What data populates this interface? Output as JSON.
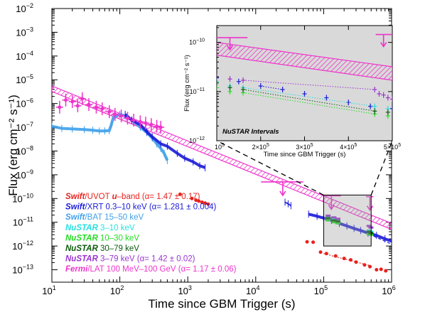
{
  "chart_data": [
    {
      "type": "scatter",
      "panel": "main",
      "xlabel": "Time since GBM Trigger (s)",
      "ylabel": "Flux (erg cm⁻² s⁻¹)",
      "xscale": "log",
      "yscale": "log",
      "xlim": [
        10,
        1000000
      ],
      "ylim": [
        3e-14,
        0.01
      ],
      "x_ticks": [
        {
          "v": 10,
          "base": "10",
          "exp": "1"
        },
        {
          "v": 100,
          "base": "10",
          "exp": "2"
        },
        {
          "v": 1000,
          "base": "10",
          "exp": "3"
        },
        {
          "v": 10000,
          "base": "10",
          "exp": "4"
        },
        {
          "v": 100000,
          "base": "10",
          "exp": "5"
        },
        {
          "v": 1000000,
          "base": "10",
          "exp": "6"
        }
      ],
      "y_ticks": [
        {
          "v": 1e-13,
          "base": "10",
          "exp": "−13"
        },
        {
          "v": 1e-12,
          "base": "10",
          "exp": "−12"
        },
        {
          "v": 1e-11,
          "base": "10",
          "exp": "−11"
        },
        {
          "v": 1e-10,
          "base": "10",
          "exp": "−10"
        },
        {
          "v": 1e-09,
          "base": "10",
          "exp": "−9"
        },
        {
          "v": 1e-08,
          "base": "10",
          "exp": "−8"
        },
        {
          "v": 1e-07,
          "base": "10",
          "exp": "−7"
        },
        {
          "v": 1e-06,
          "base": "10",
          "exp": "−6"
        },
        {
          "v": 1e-05,
          "base": "10",
          "exp": "−5"
        },
        {
          "v": 0.0001,
          "base": "10",
          "exp": "−4"
        },
        {
          "v": 0.001,
          "base": "10",
          "exp": "−3"
        },
        {
          "v": 0.01,
          "base": "10",
          "exp": "−2"
        }
      ],
      "legend_position": "bottom-left",
      "legend": [
        {
          "pre": "Swift",
          "text": "/UVOT ",
          "em2": "u",
          "post": "–band (α= 1.47 ± 0.17)",
          "color": "#e8221c"
        },
        {
          "pre": "Swift",
          "text": "/XRT 0.3–10 keV (α= 1.281 ± 0.004)",
          "color": "#1a1ad8"
        },
        {
          "pre": "Swift",
          "text": "/BAT 15–50 keV",
          "color": "#3ea0ea"
        },
        {
          "pre": "NuSTAR",
          "text": " 3–10 keV",
          "color": "#28e0e0"
        },
        {
          "pre": "NuSTAR",
          "text": " 10–30 keV",
          "color": "#22dd22"
        },
        {
          "pre": "NuSTAR",
          "text": " 30–79 keV",
          "color": "#0b5a0b"
        },
        {
          "pre": "NuSTAR",
          "text": " 3–79 keV (α= 1.42 ± 0.02)",
          "color": "#9a33d0"
        },
        {
          "pre": "Fermi",
          "text": "/LAT 100 MeV–100 GeV (α= 1.17 ± 0.06)",
          "color": "#ee33cc"
        }
      ],
      "series": [
        {
          "name": "Swift/UVOT u-band",
          "color": "#e8221c",
          "style": "points",
          "x": [
            770,
            1150,
            1320,
            1450,
            1620,
            1800,
            2000,
            57000,
            70000,
            90000,
            110000,
            150000,
            200000,
            250000,
            300000,
            400000,
            480000,
            600000,
            700000,
            820000
          ],
          "y": [
            1.5e-10,
            1e-10,
            8.5e-11,
            7.8e-11,
            7e-11,
            6.4e-11,
            5.8e-11,
            1.5e-12,
            1.45e-12,
            5.5e-13,
            4.8e-13,
            3.8e-13,
            3e-13,
            2.6e-13,
            2.1e-13,
            1.6e-13,
            1.35e-13,
            1e-13,
            1.05e-13,
            9e-14
          ],
          "fit": {
            "x": [
              100000,
              500000
            ],
            "y": [
              4.8e-13,
              1.45e-13
            ]
          }
        },
        {
          "name": "Swift/XRT 0.3-10 keV",
          "color": "#1a1ad8",
          "style": "band",
          "segments": [
            {
              "x": [
                120,
                150,
                200,
                250,
                300,
                400,
                500,
                700,
                900,
                1200,
                1500,
                1800
              ],
              "y": [
                3.5e-07,
                2e-07,
                1.3e-07,
                6.5e-08,
                4e-08,
                2e-08,
                1.6e-08,
                8e-09,
                5e-09,
                3.5e-09,
                2.4e-09,
                2e-09
              ]
            },
            {
              "x": [
                27000,
                30000,
                33000
              ],
              "y": [
                7e-11,
                6e-11,
                5e-11
              ]
            },
            {
              "x": [
                60000,
                80000,
                100000,
                130000,
                170000,
                220000,
                280000,
                350000,
                450000,
                600000,
                800000,
                1000000
              ],
              "y": [
                2.2e-11,
                1.8e-11,
                1.5e-11,
                1.2e-11,
                9e-12,
                7e-12,
                5.5e-12,
                4.5e-12,
                3.5e-12,
                2.8e-12,
                2e-12,
                1.6e-12
              ]
            }
          ],
          "fit": {
            "x": [
              400000,
              1000000
            ],
            "y": [
              3.8e-12,
              1.2e-12
            ]
          }
        },
        {
          "name": "Swift/BAT 15-50 keV",
          "color": "#3ea0ea",
          "style": "band",
          "segments": [
            {
              "x": [
                10,
                14,
                20,
                30,
                40,
                50,
                60,
                70,
                75,
                80,
                100,
                120,
                150,
                200,
                250,
                300,
                350,
                400,
                450,
                500
              ],
              "y": [
                1.1e-07,
                9e-08,
                8.5e-08,
                8e-08,
                7.5e-08,
                7e-08,
                7e-08,
                7.2e-08,
                1.3e-07,
                2.5e-07,
                3.5e-07,
                3e-07,
                2e-07,
                1e-07,
                6e-08,
                3.5e-08,
                2e-08,
                1.3e-08,
                8e-09,
                4e-09
              ]
            }
          ]
        },
        {
          "name": "NuSTAR 3-10 keV",
          "color": "#28e0e0",
          "style": "segments",
          "x": [
            115000,
            140000,
            160000,
            460000,
            490000
          ],
          "y": [
            1.7e-11,
            1.3e-11,
            1.2e-11,
            4.5e-12,
            4e-12
          ]
        },
        {
          "name": "NuSTAR 10-30 keV",
          "color": "#22dd22",
          "style": "segments",
          "x": [
            115000,
            140000,
            160000,
            460000,
            490000
          ],
          "y": [
            1.2e-11,
            1e-11,
            9e-12,
            3.2e-12,
            3e-12
          ]
        },
        {
          "name": "NuSTAR 30-79 keV",
          "color": "#0b5a0b",
          "style": "segments",
          "x": [
            115000,
            140000,
            160000,
            460000,
            490000
          ],
          "y": [
            1.5e-11,
            1.2e-11,
            1.1e-11,
            4e-12,
            3.5e-12
          ]
        },
        {
          "name": "NuSTAR 3-79 keV",
          "color": "#9a33d0",
          "style": "segments",
          "x": [
            115000,
            140000,
            160000,
            460000,
            490000
          ],
          "y": [
            1.9e-11,
            1.6e-11,
            1.4e-11,
            7e-12,
            6e-12
          ]
        },
        {
          "name": "Fermi/LAT 100 MeV-100 GeV",
          "color": "#ee33cc",
          "style": "errorbars",
          "x": [
            13,
            16,
            20,
            24,
            28,
            35,
            45,
            55,
            70,
            85,
            105,
            130,
            160,
            200,
            240,
            290,
            350,
            400
          ],
          "y": [
            7e-07,
            1.4e-06,
            1.2e-06,
            8e-07,
            1.6e-06,
            9e-07,
            7e-07,
            6e-07,
            4.5e-07,
            3.5e-07,
            3e-07,
            2.4e-07,
            2e-07,
            1.7e-07,
            1.5e-07,
            1.3e-07,
            1.1e-07,
            1e-07
          ],
          "fit_band": {
            "x": [
              10,
              1000000
            ],
            "y_low": [
              3.2e-06,
              5e-12
            ],
            "y_high": [
              5.5e-06,
              9e-12
            ]
          },
          "upper_limits": [
            {
              "x": 25000,
              "y": 5e-10,
              "xmin": 12000,
              "xmax": 50000
            },
            {
              "x": 130000,
              "y": 1.3e-10,
              "xmin": 100000,
              "xmax": 180000
            },
            {
              "x": 480000,
              "y": 1.2e-10,
              "xmin": 420000,
              "xmax": 540000
            }
          ]
        }
      ]
    },
    {
      "type": "scatter",
      "panel": "inset",
      "xlabel": "Time since GBM Trigger (s)",
      "ylabel": "Flux (erg cm⁻² s⁻¹)",
      "title": "NuSTAR Intervals",
      "xscale": "linear",
      "yscale": "log",
      "xlim": [
        100000,
        500000
      ],
      "ylim": [
        1e-12,
        2.2e-10
      ],
      "x_ticks": [
        {
          "v": 100000,
          "base": "10",
          "exp": "5",
          "mult": ""
        },
        {
          "v": 200000,
          "base": "10",
          "exp": "5",
          "mult": "2×"
        },
        {
          "v": 300000,
          "base": "10",
          "exp": "5",
          "mult": "3×"
        },
        {
          "v": 400000,
          "base": "10",
          "exp": "5",
          "mult": "4×"
        },
        {
          "v": 500000,
          "base": "10",
          "exp": "5",
          "mult": "5×"
        }
      ],
      "y_ticks": [
        {
          "v": 1e-12,
          "base": "10",
          "exp": "−12"
        },
        {
          "v": 1e-11,
          "base": "10",
          "exp": "−11"
        },
        {
          "v": 1e-10,
          "base": "10",
          "exp": "−10"
        }
      ],
      "series": [
        {
          "name": "Fermi/LAT band",
          "color": "#ee33cc",
          "x": [
            100000,
            500000
          ],
          "y_low": [
            5.5e-11,
            1.7e-11
          ],
          "y_high": [
            1e-10,
            3.2e-11
          ]
        },
        {
          "name": "Fermi/LAT upper limits",
          "color": "#ee33cc",
          "points": [
            {
              "x": 130000,
              "xmin": 100000,
              "xmax": 170000,
              "y": 1.25e-10
            },
            {
              "x": 480000,
              "xmin": 462000,
              "xmax": 500000,
              "y": 1.45e-10
            }
          ]
        },
        {
          "name": "Swift/XRT",
          "color": "#1a1ad8",
          "x": [
            100000,
            150000,
            200000,
            250000,
            300000,
            350000,
            400000,
            450000,
            500000
          ],
          "y": [
            1.9e-11,
            1.6e-11,
            1.3e-11,
            1.1e-11,
            9e-12,
            7.5e-12,
            6e-12,
            5e-12,
            4.5e-12
          ]
        },
        {
          "name": "NuSTAR 3-79 keV",
          "color": "#9a33d0",
          "x": [
            100000,
            130000,
            160000,
            460000,
            470000,
            480000,
            490000,
            500000
          ],
          "y": [
            2e-11,
            1.8e-11,
            1.7e-11,
            1.1e-11,
            9e-12,
            8.5e-12,
            7.5e-12,
            7e-12
          ]
        },
        {
          "name": "NuSTAR 3-10 keV",
          "color": "#28e0e0",
          "x": [
            100000,
            130000,
            160000,
            460000,
            490000
          ],
          "y": [
            1.6e-11,
            1.3e-11,
            1.2e-11,
            5e-12,
            4.5e-12
          ]
        },
        {
          "name": "NuSTAR 10-30 keV",
          "color": "#22dd22",
          "x": [
            100000,
            130000,
            160000,
            460000,
            490000
          ],
          "y": [
            1.2e-11,
            1e-11,
            9.5e-12,
            3.5e-12,
            3.2e-12
          ]
        },
        {
          "name": "NuSTAR 30-79 keV",
          "color": "#0b5a0b",
          "x": [
            100000,
            130000,
            160000,
            460000,
            490000
          ],
          "y": [
            1.5e-11,
            1.2e-11,
            1.1e-11,
            4e-12,
            3.8e-12
          ]
        }
      ]
    }
  ]
}
